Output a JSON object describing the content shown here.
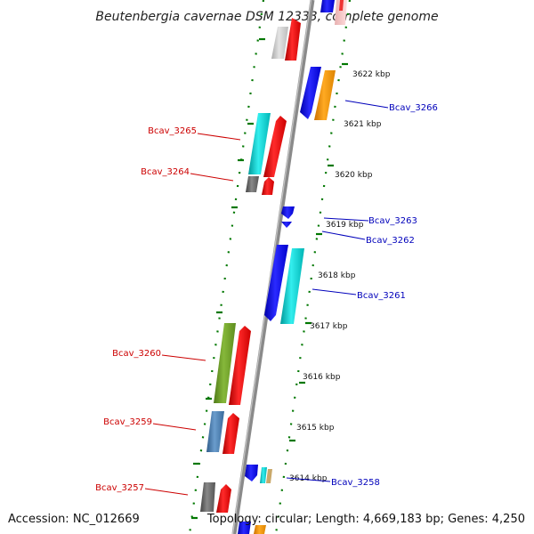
{
  "title": "Beutenbergia cavernae DSM 12333, complete genome",
  "footer": {
    "accession": "Accession: NC_012669",
    "summary": "Topology: circular; Length: 4,669,183 bp; Genes: 4,250"
  },
  "kbp_labels": [
    "3622 kbp",
    "3621 kbp",
    "3620 kbp",
    "3619 kbp",
    "3618 kbp",
    "3617 kbp",
    "3616 kbp",
    "3615 kbp",
    "3614 kbp"
  ],
  "genes_left": [
    "Bcav_3265",
    "Bcav_3264",
    "Bcav_3260",
    "Bcav_3259",
    "Bcav_3257"
  ],
  "genes_right": [
    "Bcav_3266",
    "Bcav_3263",
    "Bcav_3262",
    "Bcav_3261",
    "Bcav_3258"
  ],
  "colors": {
    "backbone": "#8a8a8a",
    "ticks": "#007700",
    "forward": "#ff0000",
    "reverse": "#0000ff",
    "cyan": "#00cccc",
    "orange": "#ff9900",
    "olive": "#669922",
    "steel": "#4477aa",
    "gray": "#666666",
    "left_label": "#cc0000",
    "right_label": "#0000bb"
  }
}
